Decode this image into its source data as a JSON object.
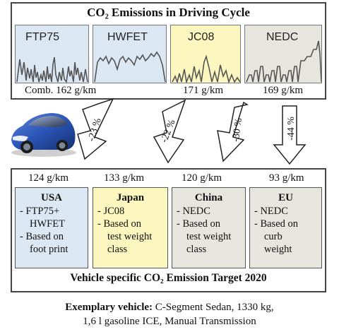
{
  "top": {
    "title": "CO₂ Emissions in Driving Cycle",
    "cycles": [
      {
        "name": "FTP75",
        "color": "#dbe8f3"
      },
      {
        "name": "HWFET",
        "color": "#dbe8f3"
      },
      {
        "name": "JC08",
        "color": "#fbf7bf"
      },
      {
        "name": "NEDC",
        "color": "#e6e6df"
      }
    ],
    "emissions": {
      "comb": "Comb. 162 g/km",
      "jc08": "171 g/km",
      "nedc": "169 g/km"
    }
  },
  "arrows": {
    "usa": "-23 %",
    "japan": "-22 %",
    "china": "-30 %",
    "eu": "-44 %"
  },
  "bottom": {
    "targets": [
      "124 g/km",
      "133 g/km",
      "120 g/km",
      "93 g/km"
    ],
    "regions": [
      {
        "title": "USA",
        "color": "#dbe8f3",
        "lines": [
          "- FTP75+",
          "  HWFET",
          "- Based on",
          "  foot print"
        ]
      },
      {
        "title": "Japan",
        "color": "#fbf7bf",
        "lines": [
          "- JC08",
          "- Based on",
          "  test weight",
          "  class"
        ]
      },
      {
        "title": "China",
        "color": "#e6e6df",
        "lines": [
          "- NEDC",
          "- Based on",
          "  test weight",
          "  class"
        ]
      },
      {
        "title": "EU",
        "color": "#e6e6df",
        "lines": [
          "- NEDC",
          "- Based on",
          "  curb",
          "  weight"
        ]
      }
    ],
    "caption": "Vehicle specific CO₂ Emission Target 2020"
  },
  "footer": {
    "label": "Exemplary vehicle:",
    "line1_rest": " C-Segment Sedan, 1330 kg,",
    "line2": "1,6 l gasoline ICE, Manual Transmission"
  }
}
